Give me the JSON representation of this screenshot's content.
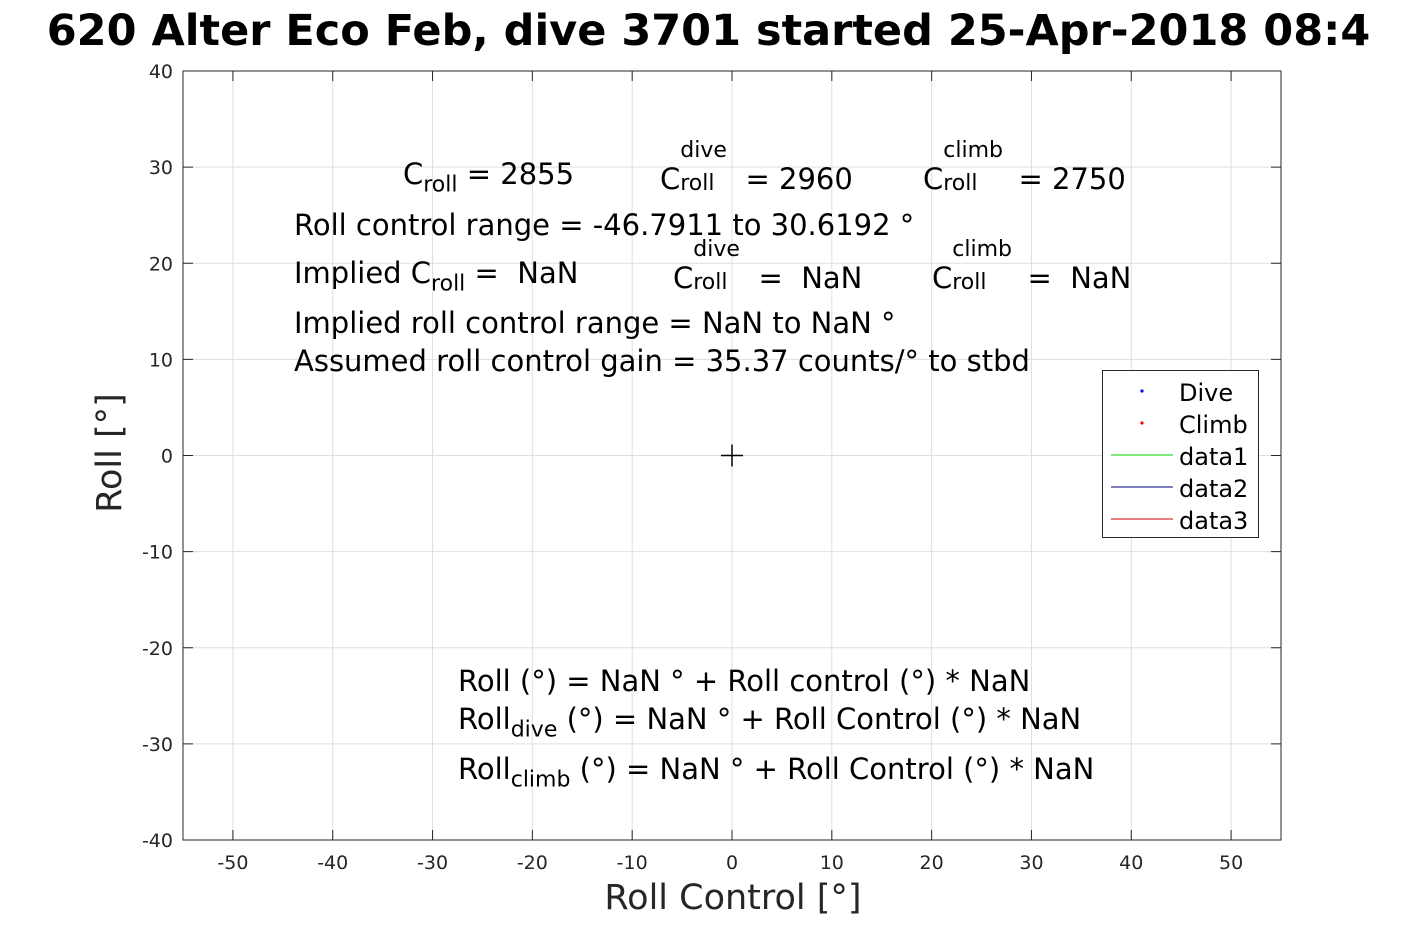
{
  "figure": {
    "title": "620 Alter Eco Feb, dive 3701 started 25-Apr-2018 08:4"
  },
  "chart_data": {
    "type": "scatter",
    "title": "620 Alter Eco Feb, dive 3701 started 25-Apr-2018 08:4",
    "xlabel": "Roll Control [°]",
    "ylabel": "Roll [°]",
    "xlim": [
      -55,
      55
    ],
    "ylim": [
      -40,
      40
    ],
    "xticks": [
      -50,
      -40,
      -30,
      -20,
      -10,
      0,
      10,
      20,
      30,
      40,
      50
    ],
    "yticks": [
      -40,
      -30,
      -20,
      -10,
      0,
      10,
      20,
      30,
      40
    ],
    "grid": true,
    "legend_position": "right",
    "series": [
      {
        "name": "Dive",
        "kind": "points",
        "color": "#0000ff",
        "x": [],
        "y": []
      },
      {
        "name": "Climb",
        "kind": "points",
        "color": "#ff0000",
        "x": [],
        "y": []
      },
      {
        "name": "data1",
        "kind": "line",
        "color": "#00cc00",
        "x": [],
        "y": []
      },
      {
        "name": "data2",
        "kind": "line",
        "color": "#000080",
        "x": [],
        "y": []
      },
      {
        "name": "data3",
        "kind": "line",
        "color": "#cc0000",
        "x": [],
        "y": []
      }
    ],
    "marker": {
      "x": 0,
      "y": 0,
      "symbol": "+"
    },
    "annotations": {
      "c_roll_value": "2855",
      "c_dive_value": "2960",
      "c_climb_value": "2750",
      "roll_control_range": "Roll control range = -46.7911 to 30.6192 °",
      "implied_c_roll_value": "NaN",
      "implied_c_dive_value": "NaN",
      "implied_c_climb_value": "NaN",
      "implied_range": "Implied roll control range = NaN to NaN °",
      "assumed_gain": "Assumed roll control gain = 35.37 counts/° to stbd",
      "fit_all": "Roll (°) = NaN ° + Roll control (°) * NaN",
      "fit_dive_rest": " (°) = NaN ° + Roll Control (°) * NaN",
      "fit_climb_rest": " (°) = NaN ° + Roll Control (°) * NaN"
    },
    "labels": {
      "C": "C",
      "roll": "roll",
      "dive": "dive",
      "climb": "climb",
      "Roll": "Roll",
      "implied_prefix": "Implied C",
      "eq": " = ",
      "eq_pad": " =  "
    }
  }
}
